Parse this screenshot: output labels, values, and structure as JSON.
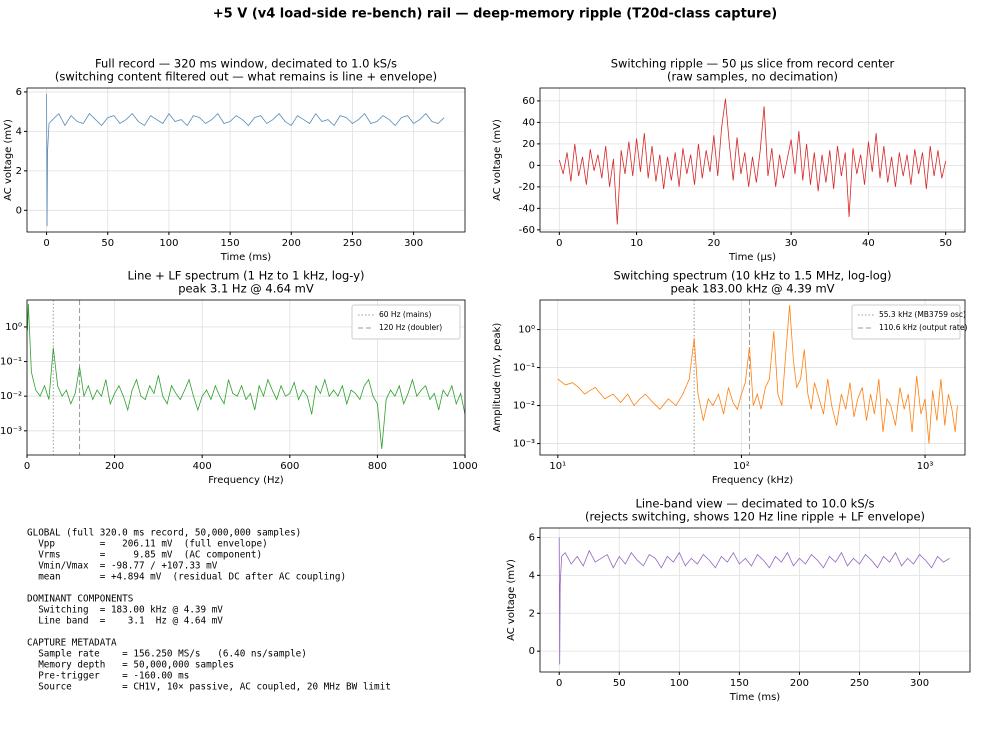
{
  "figure_title": "+5 V (v4 load-side re-bench) rail — deep-memory ripple (T20d-class capture)",
  "chart_data": [
    {
      "type": "line",
      "title": [
        "Full record — 320 ms window, decimated to 1.0 kS/s",
        "(switching content filtered out — what remains is line + envelope)"
      ],
      "xlabel": "Time (ms)",
      "ylabel": "AC voltage (mV)",
      "grid": true,
      "x": [
        0,
        0.4,
        0.8,
        2,
        5,
        10,
        15,
        20,
        25,
        30,
        35,
        40,
        45,
        50,
        55,
        60,
        65,
        70,
        75,
        80,
        85,
        90,
        95,
        100,
        105,
        110,
        115,
        120,
        125,
        130,
        135,
        140,
        145,
        150,
        155,
        160,
        165,
        170,
        175,
        180,
        185,
        190,
        195,
        200,
        205,
        210,
        215,
        220,
        225,
        230,
        235,
        240,
        245,
        250,
        255,
        260,
        265,
        270,
        275,
        280,
        285,
        290,
        295,
        300,
        305,
        310,
        315,
        320,
        325
      ],
      "series": [
        {
          "color": "#5a8bb8",
          "values": [
            5.9,
            -0.8,
            3.0,
            4.4,
            4.6,
            4.9,
            4.3,
            4.8,
            4.5,
            4.4,
            4.9,
            4.6,
            4.3,
            4.7,
            4.8,
            4.4,
            4.6,
            4.9,
            4.5,
            4.3,
            4.8,
            4.6,
            4.4,
            4.9,
            4.5,
            4.6,
            4.3,
            4.8,
            4.7,
            4.4,
            4.6,
            4.9,
            4.4,
            4.5,
            4.8,
            4.6,
            4.3,
            4.7,
            4.8,
            4.4,
            4.6,
            4.9,
            4.5,
            4.3,
            4.8,
            4.6,
            4.4,
            4.9,
            4.5,
            4.6,
            4.3,
            4.8,
            4.7,
            4.4,
            4.6,
            4.9,
            4.4,
            4.5,
            4.8,
            4.6,
            4.3,
            4.7,
            4.8,
            4.4,
            4.6,
            4.9,
            4.5,
            4.4,
            4.7
          ]
        }
      ],
      "xlim": [
        -16,
        342
      ],
      "xticks": [
        0,
        50,
        100,
        150,
        200,
        250,
        300
      ],
      "ylim": [
        -1.1,
        6.2
      ],
      "yticks": [
        0,
        2,
        4,
        6
      ]
    },
    {
      "type": "line",
      "title": [
        "Switching ripple — 50 µs slice from record center",
        "(raw samples, no decimation)"
      ],
      "xlabel": "Time (µs)",
      "ylabel": "AC voltage (mV)",
      "grid": true,
      "x": [
        0,
        0.5,
        1,
        1.5,
        2,
        2.5,
        3,
        3.5,
        4,
        4.5,
        5,
        5.5,
        6,
        6.5,
        7,
        7.5,
        8,
        8.5,
        9,
        9.5,
        10,
        10.5,
        11,
        11.5,
        12,
        12.5,
        13,
        13.5,
        14,
        14.5,
        15,
        15.5,
        16,
        16.5,
        17,
        17.5,
        18,
        18.5,
        19,
        19.5,
        20,
        20.5,
        21,
        21.5,
        22,
        22.5,
        23,
        23.5,
        24,
        24.5,
        25,
        25.5,
        26,
        26.5,
        27,
        27.5,
        28,
        28.5,
        29,
        29.5,
        30,
        30.5,
        31,
        31.5,
        32,
        32.5,
        33,
        33.5,
        34,
        34.5,
        35,
        35.5,
        36,
        36.5,
        37,
        37.5,
        38,
        38.5,
        39,
        39.5,
        40,
        40.5,
        41,
        41.5,
        42,
        42.5,
        43,
        43.5,
        44,
        44.5,
        45,
        45.5,
        46,
        46.5,
        47,
        47.5,
        48,
        48.5,
        49,
        49.5,
        50
      ],
      "series": [
        {
          "color": "#d62728",
          "values": [
            5,
            -8,
            12,
            -15,
            20,
            -10,
            8,
            -18,
            15,
            -5,
            10,
            -12,
            18,
            -20,
            6,
            -55,
            14,
            -8,
            22,
            -10,
            25,
            -6,
            30,
            -12,
            18,
            -15,
            10,
            -22,
            8,
            -14,
            12,
            -20,
            16,
            -8,
            10,
            -18,
            20,
            -12,
            14,
            -6,
            28,
            -10,
            35,
            62,
            20,
            -14,
            26,
            -8,
            12,
            -20,
            8,
            -16,
            14,
            55,
            -10,
            16,
            -20,
            10,
            -12,
            6,
            24,
            -8,
            32,
            -14,
            20,
            -18,
            12,
            -24,
            10,
            -16,
            14,
            -22,
            18,
            -10,
            12,
            -48,
            16,
            -8,
            10,
            -18,
            22,
            -6,
            30,
            -12,
            18,
            -16,
            8,
            -20,
            12,
            -10,
            10,
            -18,
            15,
            -8,
            12,
            -22,
            18,
            -10,
            14,
            -12,
            4
          ]
        }
      ],
      "xlim": [
        -2.5,
        52.5
      ],
      "xticks": [
        0,
        10,
        20,
        30,
        40,
        50
      ],
      "ylim": [
        -62,
        72
      ],
      "yticks": [
        -60,
        -40,
        -20,
        0,
        20,
        40,
        60
      ]
    },
    {
      "type": "line",
      "title": [
        "Line + LF spectrum (1 Hz to 1 kHz, log-y)",
        "peak 3.1 Hz @ 4.64 mV"
      ],
      "xlabel": "Frequency (Hz)",
      "yscale": "log",
      "grid": true,
      "legend": "upper right",
      "vlines": [
        {
          "x": 60,
          "label": "60 Hz (mains)",
          "style": "dotted",
          "color": "#999999"
        },
        {
          "x": 120,
          "label": "120 Hz (doubler)",
          "style": "dashed",
          "color": "#999999"
        }
      ],
      "x": [
        1,
        3.1,
        10,
        20,
        30,
        40,
        50,
        60,
        70,
        80,
        90,
        100,
        110,
        120,
        130,
        140,
        150,
        160,
        170,
        180,
        190,
        200,
        210,
        220,
        230,
        240,
        250,
        260,
        270,
        280,
        290,
        300,
        310,
        320,
        330,
        340,
        350,
        360,
        370,
        380,
        390,
        400,
        410,
        420,
        430,
        440,
        450,
        460,
        470,
        480,
        490,
        500,
        510,
        520,
        530,
        540,
        550,
        560,
        570,
        580,
        590,
        600,
        610,
        620,
        630,
        640,
        650,
        660,
        670,
        680,
        690,
        700,
        710,
        720,
        730,
        740,
        750,
        760,
        770,
        780,
        790,
        800,
        810,
        820,
        830,
        840,
        850,
        860,
        870,
        880,
        890,
        900,
        910,
        920,
        930,
        940,
        950,
        960,
        970,
        980,
        990,
        1000
      ],
      "series": [
        {
          "color": "#2ca02c",
          "values": [
            0.8,
            4.64,
            0.05,
            0.015,
            0.01,
            0.02,
            0.008,
            0.25,
            0.02,
            0.01,
            0.015,
            0.006,
            0.012,
            0.07,
            0.01,
            0.02,
            0.008,
            0.015,
            0.01,
            0.03,
            0.006,
            0.012,
            0.02,
            0.01,
            0.004,
            0.015,
            0.03,
            0.01,
            0.008,
            0.02,
            0.012,
            0.04,
            0.01,
            0.006,
            0.02,
            0.012,
            0.008,
            0.015,
            0.03,
            0.01,
            0.004,
            0.01,
            0.015,
            0.008,
            0.02,
            0.01,
            0.006,
            0.03,
            0.012,
            0.01,
            0.02,
            0.008,
            0.012,
            0.004,
            0.02,
            0.01,
            0.03,
            0.015,
            0.008,
            0.02,
            0.01,
            0.012,
            0.025,
            0.008,
            0.015,
            0.01,
            0.003,
            0.02,
            0.012,
            0.03,
            0.01,
            0.015,
            0.01,
            0.02,
            0.006,
            0.015,
            0.012,
            0.008,
            0.02,
            0.03,
            0.01,
            0.006,
            0.0003,
            0.008,
            0.015,
            0.01,
            0.02,
            0.006,
            0.012,
            0.03,
            0.01,
            0.015,
            0.02,
            0.008,
            0.012,
            0.004,
            0.015,
            0.01,
            0.02,
            0.006,
            0.012,
            0.003
          ]
        }
      ],
      "xlim": [
        0,
        1000
      ],
      "xticks": [
        0,
        200,
        400,
        600,
        800,
        1000
      ],
      "ylim": [
        0.0002,
        6
      ],
      "yticks": [
        {
          "value": 0.001,
          "label": "10⁻³"
        },
        {
          "value": 0.01,
          "label": "10⁻²"
        },
        {
          "value": 0.1,
          "label": "10⁻¹"
        },
        {
          "value": 1,
          "label": "10⁰"
        }
      ]
    },
    {
      "type": "line",
      "title": [
        "Switching spectrum (10 kHz to 1.5 MHz, log-log)",
        "peak 183.00 kHz @ 4.39 mV"
      ],
      "xlabel": "Frequency (kHz)",
      "ylabel": "Amplitude (mV, peak)",
      "xscale": "log",
      "yscale": "log",
      "grid": true,
      "legend": "upper right",
      "vlines": [
        {
          "x": 55.3,
          "label": "55.3 kHz (MB3759 osc)",
          "style": "dotted",
          "color": "#999999"
        },
        {
          "x": 110.6,
          "label": "110.6 kHz (output rate)",
          "style": "dashed",
          "color": "#999999"
        }
      ],
      "x": [
        10,
        11,
        12,
        13,
        14,
        15,
        16,
        18,
        20,
        22,
        24,
        26,
        28,
        30,
        33,
        36,
        40,
        44,
        48,
        52,
        55.3,
        58,
        62,
        66,
        70,
        75,
        80,
        85,
        90,
        95,
        100,
        105,
        110.6,
        116,
        122,
        128,
        135,
        142,
        150,
        158,
        166,
        175,
        183,
        192,
        200,
        210,
        220,
        230,
        240,
        250,
        265,
        280,
        295,
        310,
        330,
        350,
        370,
        390,
        410,
        430,
        455,
        480,
        505,
        530,
        560,
        590,
        620,
        650,
        690,
        730,
        770,
        810,
        850,
        900,
        950,
        1000,
        1050,
        1100,
        1160,
        1220,
        1280,
        1340,
        1400,
        1460,
        1500
      ],
      "series": [
        {
          "color": "#ff7f0e",
          "values": [
            0.05,
            0.035,
            0.04,
            0.03,
            0.02,
            0.025,
            0.03,
            0.015,
            0.02,
            0.012,
            0.02,
            0.01,
            0.015,
            0.02,
            0.012,
            0.008,
            0.015,
            0.01,
            0.02,
            0.05,
            0.6,
            0.02,
            0.004,
            0.015,
            0.01,
            0.02,
            0.006,
            0.03,
            0.012,
            0.008,
            0.02,
            0.04,
            0.35,
            0.01,
            0.02,
            0.008,
            0.03,
            0.05,
            0.9,
            0.02,
            0.01,
            0.3,
            4.39,
            0.15,
            0.03,
            0.05,
            0.3,
            0.02,
            0.008,
            0.04,
            0.015,
            0.006,
            0.05,
            0.01,
            0.003,
            0.02,
            0.008,
            0.04,
            0.005,
            0.015,
            0.03,
            0.004,
            0.02,
            0.006,
            0.05,
            0.002,
            0.015,
            0.01,
            0.003,
            0.03,
            0.008,
            0.02,
            0.002,
            0.06,
            0.006,
            0.015,
            0.001,
            0.025,
            0.004,
            0.05,
            0.003,
            0.02,
            0.008,
            0.002,
            0.01
          ]
        }
      ],
      "xlim": [
        8,
        1650
      ],
      "xticks": [
        {
          "value": 10,
          "label": "10¹"
        },
        {
          "value": 100,
          "label": "10²"
        },
        {
          "value": 1000,
          "label": "10³"
        }
      ],
      "ylim": [
        0.0005,
        6
      ],
      "yticks": [
        {
          "value": 0.001,
          "label": "10⁻³"
        },
        {
          "value": 0.01,
          "label": "10⁻²"
        },
        {
          "value": 0.1,
          "label": "10⁻¹"
        },
        {
          "value": 1,
          "label": "10⁰"
        }
      ]
    },
    {
      "type": "line",
      "title": [
        "Line-band view — decimated to 10.0 kS/s",
        "(rejects switching, shows 120 Hz line ripple + LF envelope)"
      ],
      "xlabel": "Time (ms)",
      "ylabel": "AC voltage (mV)",
      "grid": true,
      "x": [
        0,
        0.4,
        0.8,
        2,
        5,
        10,
        15,
        20,
        25,
        30,
        35,
        40,
        45,
        50,
        55,
        60,
        65,
        70,
        75,
        80,
        85,
        90,
        95,
        100,
        105,
        110,
        115,
        120,
        125,
        130,
        135,
        140,
        145,
        150,
        155,
        160,
        165,
        170,
        175,
        180,
        185,
        190,
        195,
        200,
        205,
        210,
        215,
        220,
        225,
        230,
        235,
        240,
        245,
        250,
        255,
        260,
        265,
        270,
        275,
        280,
        285,
        290,
        295,
        300,
        305,
        310,
        315,
        320,
        325
      ],
      "series": [
        {
          "color": "#9467bd",
          "values": [
            6.0,
            -0.7,
            3.5,
            5.0,
            5.2,
            4.6,
            5.0,
            4.5,
            5.3,
            4.7,
            4.9,
            5.1,
            4.4,
            5.0,
            4.6,
            5.2,
            4.8,
            4.5,
            5.1,
            4.9,
            4.4,
            5.0,
            4.7,
            5.2,
            4.5,
            4.9,
            4.6,
            5.1,
            4.8,
            4.4,
            5.0,
            4.7,
            5.2,
            4.6,
            4.9,
            4.5,
            5.1,
            4.8,
            4.4,
            5.0,
            4.7,
            5.2,
            4.5,
            4.9,
            4.6,
            5.1,
            4.8,
            4.4,
            5.0,
            4.7,
            5.2,
            4.5,
            4.9,
            4.6,
            5.1,
            4.8,
            4.4,
            5.0,
            4.7,
            5.2,
            4.5,
            4.9,
            4.6,
            5.1,
            4.8,
            4.4,
            5.0,
            4.7,
            4.9
          ]
        }
      ],
      "xlim": [
        -16,
        342
      ],
      "xticks": [
        0,
        50,
        100,
        150,
        200,
        250,
        300
      ],
      "ylim": [
        -1.1,
        6.5
      ],
      "yticks": [
        0,
        2,
        4,
        6
      ]
    }
  ],
  "text_panel": [
    {
      "heading": "GLOBAL (full 320.0 ms record, 50,000,000 samples)",
      "lines": [
        "  Vpp        =   206.11 mV  (full envelope)",
        "  Vrms       =     9.85 mV  (AC component)",
        "  Vmin/Vmax  = -98.77 / +107.33 mV",
        "  mean       = +4.894 mV  (residual DC after AC coupling)"
      ]
    },
    {
      "heading": "DOMINANT COMPONENTS",
      "lines": [
        "  Switching  = 183.00 kHz @ 4.39 mV",
        "  Line band  =    3.1  Hz @ 4.64 mV"
      ]
    },
    {
      "heading": "CAPTURE METADATA",
      "lines": [
        "  Sample rate    = 156.250 MS/s   (6.40 ns/sample)",
        "  Memory depth   = 50,000,000 samples",
        "  Pre-trigger    = -160.00 ms",
        "  Source         = CH1V, 10× passive, AC coupled, 20 MHz BW limit"
      ]
    }
  ]
}
